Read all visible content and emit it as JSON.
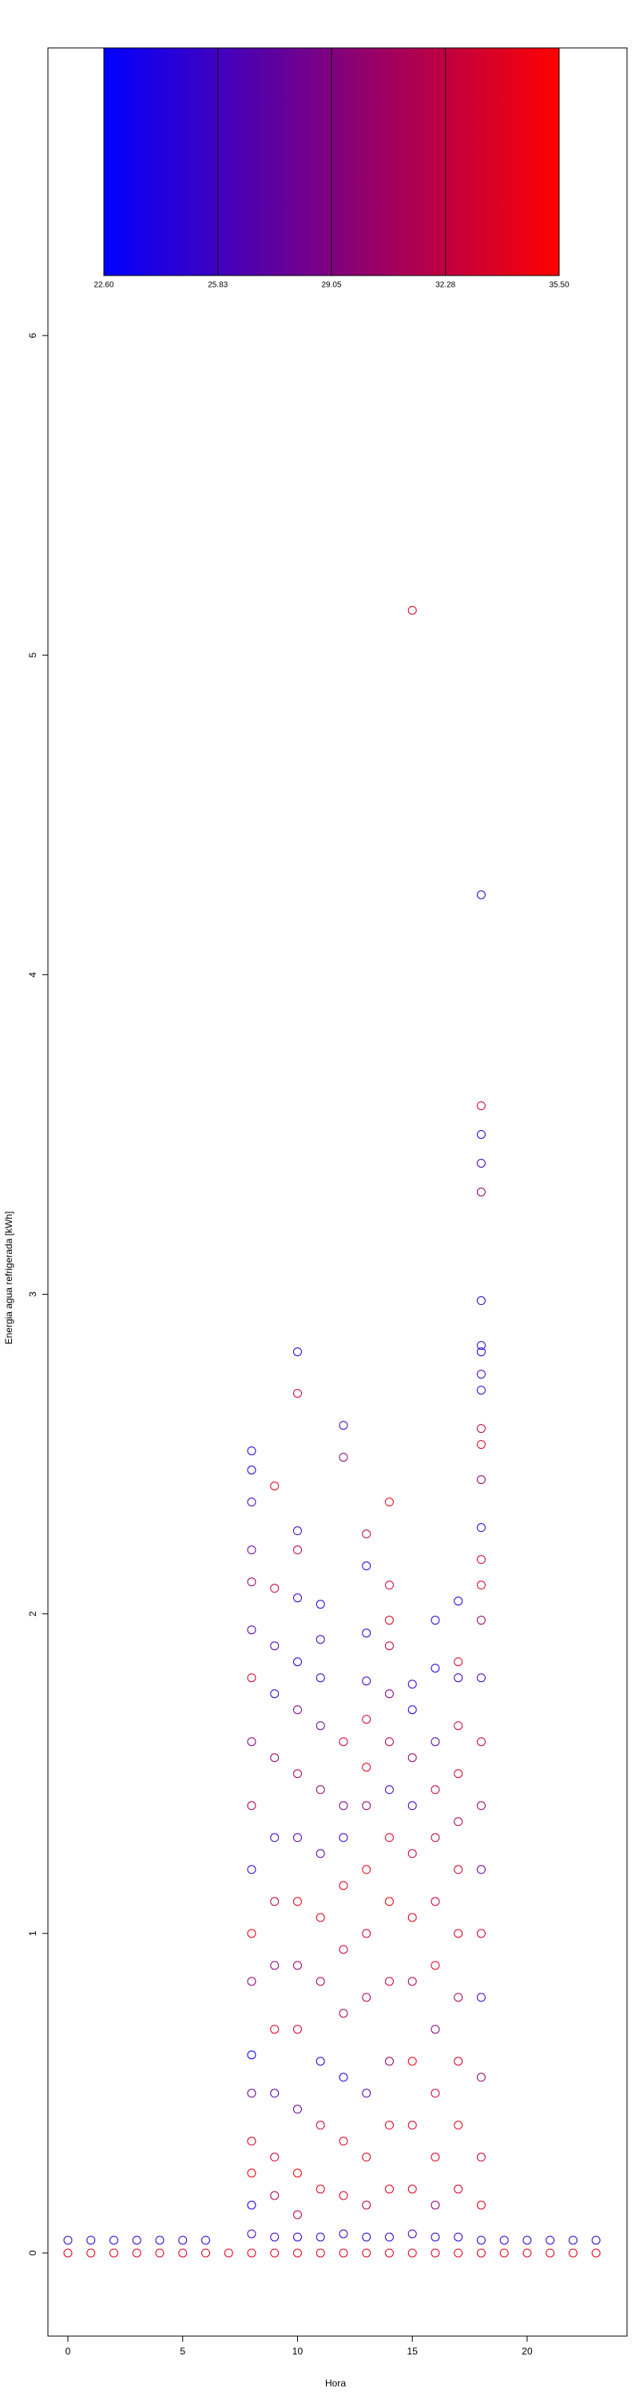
{
  "chart_data": {
    "type": "scatter",
    "xlabel": "Hora",
    "ylabel": "Energia agua refrigerada [kWh]",
    "xlim": [
      -0.87,
      24.35
    ],
    "ylim": [
      -0.26,
      6.9
    ],
    "xticks": [
      0,
      5,
      10,
      15,
      20
    ],
    "yticks": [
      0,
      1,
      2,
      3,
      4,
      5,
      6
    ],
    "colorbar": {
      "lim": [
        22.6,
        35.5
      ],
      "ticks": [
        {
          "value": 22.6,
          "label": "22.60"
        },
        {
          "value": 25.83,
          "label": "25.83"
        },
        {
          "value": 29.05,
          "label": "29.05"
        },
        {
          "value": 32.28,
          "label": "32.28"
        },
        {
          "value": 35.5,
          "label": "35.50"
        }
      ],
      "colors": [
        "#0000ff",
        "#ff0000"
      ]
    },
    "x": [
      0,
      0,
      1,
      1,
      2,
      2,
      3,
      3,
      4,
      4,
      5,
      5,
      6,
      6,
      7,
      8,
      8,
      8,
      8,
      8,
      8,
      8,
      8,
      8,
      8,
      8,
      8,
      8,
      8,
      8,
      8,
      8,
      8,
      8,
      9,
      9,
      9,
      9,
      9,
      9,
      9,
      9,
      9,
      9,
      9,
      9,
      9,
      9,
      10,
      10,
      10,
      10,
      10,
      10,
      10,
      10,
      10,
      10,
      10,
      10,
      10,
      10,
      10,
      10,
      10,
      11,
      11,
      11,
      11,
      11,
      11,
      11,
      11,
      11,
      11,
      11,
      11,
      11,
      12,
      12,
      12,
      12,
      12,
      12,
      12,
      12,
      12,
      12,
      12,
      12,
      12,
      13,
      13,
      13,
      13,
      13,
      13,
      13,
      13,
      13,
      13,
      13,
      13,
      13,
      13,
      13,
      14,
      14,
      14,
      14,
      14,
      14,
      14,
      14,
      14,
      14,
      14,
      14,
      14,
      14,
      14,
      15,
      15,
      15,
      15,
      15,
      15,
      15,
      15,
      15,
      15,
      15,
      15,
      15,
      16,
      16,
      16,
      16,
      16,
      16,
      16,
      16,
      16,
      16,
      16,
      16,
      16,
      17,
      17,
      17,
      17,
      17,
      17,
      17,
      17,
      17,
      17,
      17,
      17,
      17,
      17,
      18,
      18,
      18,
      18,
      18,
      18,
      18,
      18,
      18,
      18,
      18,
      18,
      18,
      18,
      18,
      18,
      18,
      18,
      18,
      18,
      18,
      18,
      18,
      18,
      18,
      18,
      18,
      18,
      19,
      19,
      20,
      20,
      21,
      21,
      22,
      22,
      23,
      23
    ],
    "values": [
      0.04,
      0,
      0.04,
      0,
      0.04,
      0,
      0.04,
      0,
      0.04,
      0,
      0.04,
      0,
      0.04,
      0,
      0,
      2.51,
      2.45,
      2.35,
      2.2,
      2.1,
      1.95,
      1.8,
      1.6,
      1.4,
      1.2,
      1.0,
      0.85,
      0.62,
      0.5,
      0.35,
      0.25,
      0.15,
      0.06,
      0,
      2.4,
      2.08,
      1.9,
      1.75,
      1.55,
      1.3,
      1.1,
      0.9,
      0.7,
      0.5,
      0.3,
      0.18,
      0.05,
      0,
      2.82,
      2.69,
      2.26,
      2.2,
      2.05,
      1.85,
      1.7,
      1.5,
      1.3,
      1.1,
      0.9,
      0.7,
      0.45,
      0.25,
      0.12,
      0.05,
      0,
      2.03,
      1.92,
      1.8,
      1.65,
      1.45,
      1.25,
      1.05,
      0.85,
      0.6,
      0.4,
      0.2,
      0.05,
      0,
      2.59,
      2.49,
      1.6,
      1.4,
      1.3,
      1.15,
      0.95,
      0.75,
      0.55,
      0.35,
      0.18,
      0.06,
      0,
      2.25,
      2.15,
      1.94,
      1.79,
      1.67,
      1.52,
      1.4,
      1.2,
      1.0,
      0.8,
      0.5,
      0.3,
      0.15,
      0.05,
      0,
      2.35,
      2.09,
      1.98,
      1.9,
      1.75,
      1.6,
      1.45,
      1.3,
      1.1,
      0.85,
      0.6,
      0.4,
      0.2,
      0.05,
      0,
      5.14,
      1.78,
      1.7,
      1.55,
      1.4,
      1.25,
      1.05,
      0.85,
      0.6,
      0.4,
      0.2,
      0.06,
      0,
      1.98,
      1.83,
      1.6,
      1.45,
      1.3,
      1.1,
      0.9,
      0.7,
      0.5,
      0.3,
      0.15,
      0.05,
      0,
      2.04,
      1.85,
      1.8,
      1.65,
      1.5,
      1.35,
      1.2,
      1.0,
      0.8,
      0.6,
      0.4,
      0.2,
      0.05,
      0,
      4.25,
      3.59,
      3.5,
      3.41,
      3.32,
      2.98,
      2.84,
      2.82,
      2.75,
      2.7,
      2.58,
      2.53,
      2.42,
      2.27,
      2.17,
      2.09,
      1.98,
      1.8,
      1.6,
      1.4,
      1.2,
      1.0,
      0.8,
      0.55,
      0.3,
      0.15,
      0.04,
      0,
      0.04,
      0,
      0.04,
      0,
      0.04,
      0,
      0.04,
      0,
      0.04,
      0
    ],
    "temperature": [
      25,
      34,
      25,
      34,
      25,
      34,
      25,
      34,
      25,
      34,
      25,
      34,
      25,
      34,
      34,
      24,
      24,
      26,
      28,
      30,
      27,
      33,
      29,
      31,
      25,
      34,
      30,
      23,
      28,
      33,
      35,
      24,
      26,
      34,
      34,
      33,
      27,
      24,
      30,
      26,
      32,
      29,
      34,
      27,
      33,
      31,
      26,
      34,
      24,
      33,
      26,
      32,
      25,
      24,
      29,
      31,
      27,
      34,
      30,
      33,
      28,
      35,
      32,
      25,
      34,
      24,
      26,
      25,
      28,
      30,
      27,
      34,
      31,
      25,
      33,
      34,
      25,
      34,
      26,
      30,
      33,
      29,
      25,
      34,
      33,
      31,
      24,
      34,
      33,
      25,
      34,
      32,
      24,
      25,
      26,
      33,
      34,
      30,
      35,
      33,
      31,
      27,
      34,
      32,
      25,
      34,
      35,
      33,
      34,
      33,
      29,
      32,
      26,
      34,
      35,
      33,
      30,
      34,
      34,
      25,
      34,
      34,
      25,
      24,
      30,
      26,
      33,
      34,
      31,
      35,
      33,
      34,
      26,
      34,
      25,
      24,
      27,
      33,
      32,
      33,
      34,
      29,
      33,
      34,
      30,
      25,
      34,
      24,
      34,
      26,
      33,
      34,
      32,
      33,
      34,
      31,
      33,
      34,
      33,
      25,
      34,
      25,
      33,
      24,
      26,
      30,
      25,
      26,
      24,
      26,
      25,
      32,
      34,
      30,
      25,
      33,
      34,
      30,
      26,
      33,
      30,
      28,
      33,
      26,
      30,
      33,
      34,
      25,
      34,
      25,
      34,
      25,
      34,
      25,
      34,
      25,
      34,
      25,
      34
    ]
  }
}
